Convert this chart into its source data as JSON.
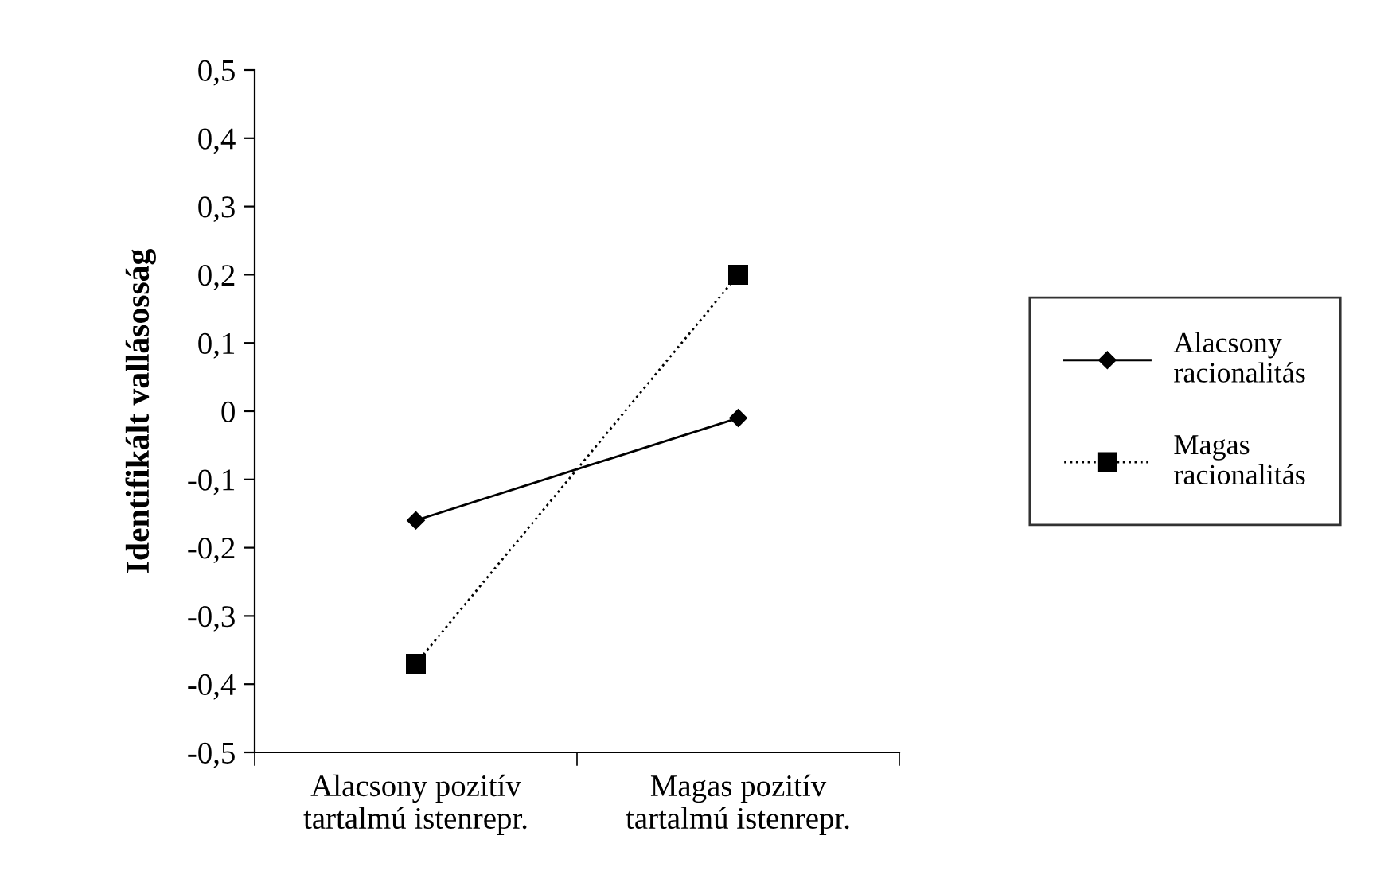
{
  "chart_data": {
    "type": "line",
    "ylabel": "Identifikált vallásosság",
    "categories": [
      "Alacsony pozitív\ntartalmú istenrepr.",
      "Magas pozitív\ntartalmú istenrepr."
    ],
    "series": [
      {
        "name": "Alacsony racionalitás",
        "color": "#000000",
        "values": [
          -0.16,
          -0.01
        ],
        "marker": "diamond",
        "line_style": "solid"
      },
      {
        "name": "Magas racionalitás",
        "color": "#000000",
        "values": [
          -0.37,
          0.2
        ],
        "marker": "square",
        "line_style": "dotted"
      }
    ],
    "ylim": [
      -0.5,
      0.5
    ],
    "yticks": [
      {
        "value": -0.5,
        "label": "-0,5"
      },
      {
        "value": -0.4,
        "label": "-0,4"
      },
      {
        "value": -0.3,
        "label": "-0,3"
      },
      {
        "value": -0.2,
        "label": "-0,2"
      },
      {
        "value": -0.1,
        "label": "-0,1"
      },
      0,
      {
        "value": 0.1,
        "label": "0,1"
      },
      {
        "value": 0.2,
        "label": "0,2"
      },
      {
        "value": 0.3,
        "label": "0,3"
      },
      {
        "value": 0.4,
        "label": "0,4"
      },
      {
        "value": 0.5,
        "label": "0,5"
      }
    ],
    "grid": false,
    "legend": "right"
  }
}
